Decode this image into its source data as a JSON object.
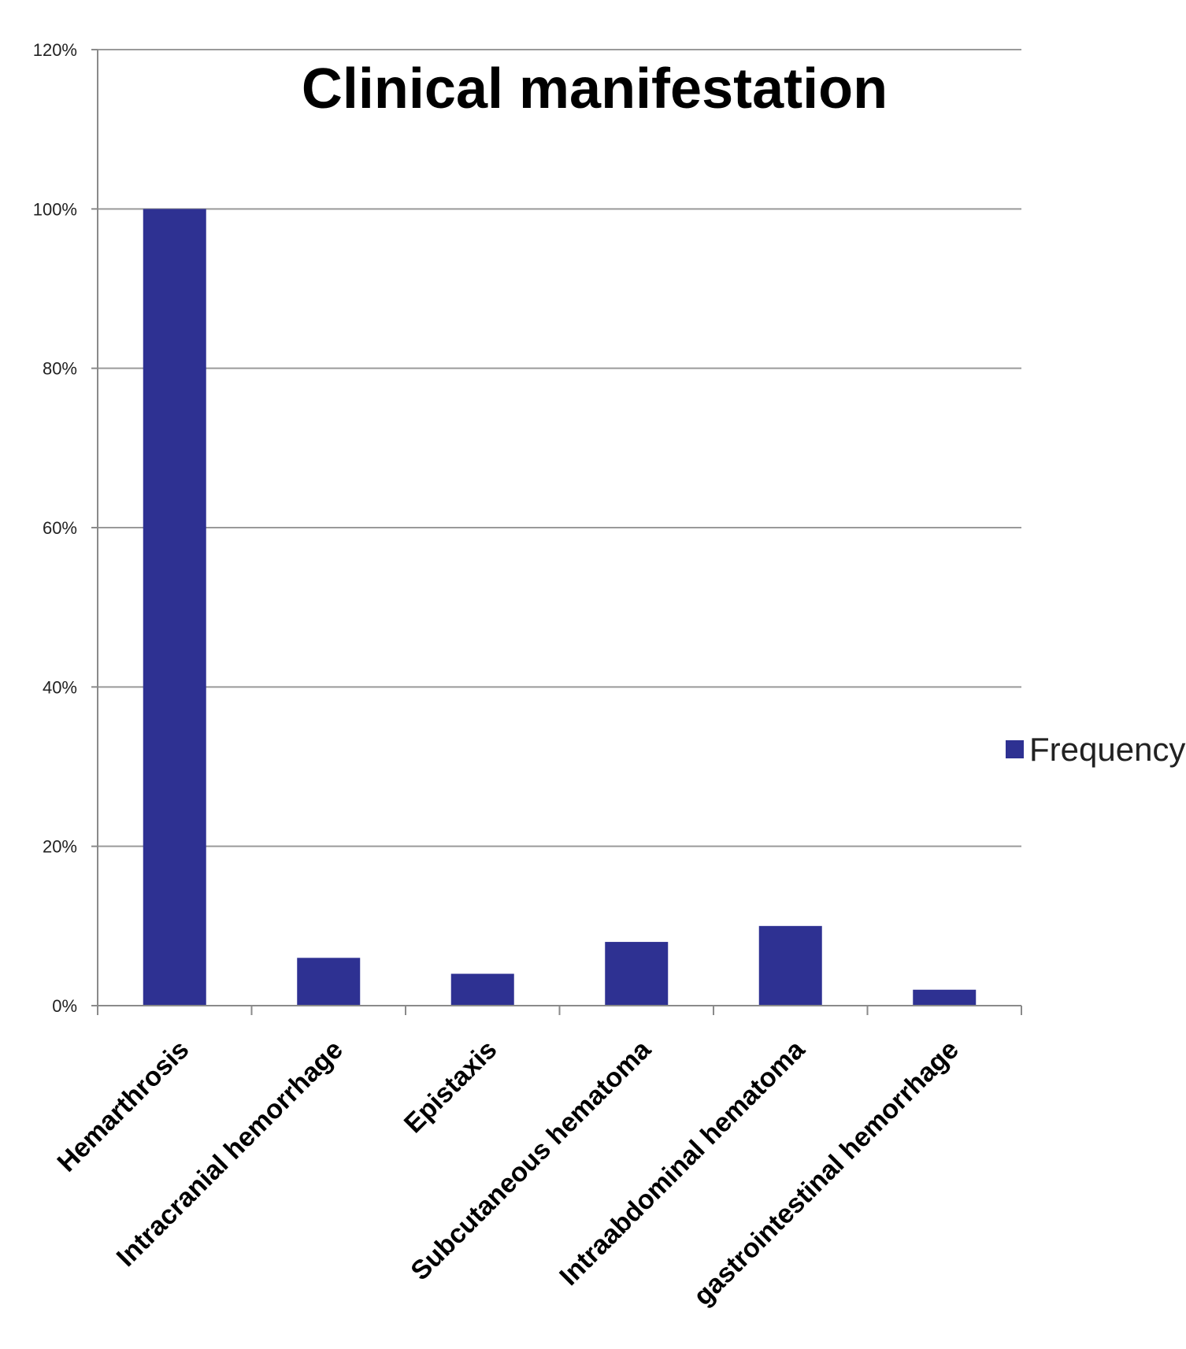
{
  "chart_data": {
    "type": "bar",
    "title": "Clinical manifestation",
    "categories": [
      "Hemarthrosis",
      "Intracranial hemorrhage",
      "Epistaxis",
      "Subcutaneous hematoma",
      "Intraabdominal hematoma",
      "gastrointestinal hemorrhage"
    ],
    "series": [
      {
        "name": "Frequency",
        "values": [
          100,
          6,
          4,
          8,
          10,
          2
        ]
      }
    ],
    "ylim": [
      0,
      120
    ],
    "yticks": [
      0,
      20,
      40,
      60,
      80,
      100,
      120
    ],
    "ytick_labels": [
      "0%",
      "20%",
      "40%",
      "60%",
      "80%",
      "100%",
      "120%"
    ],
    "xlabel": "",
    "ylabel": "",
    "grid": true,
    "legend": "right",
    "colors": {
      "bar": "#2E3192",
      "grid": "#9a9a9a",
      "axis": "#8a8a8a"
    }
  }
}
